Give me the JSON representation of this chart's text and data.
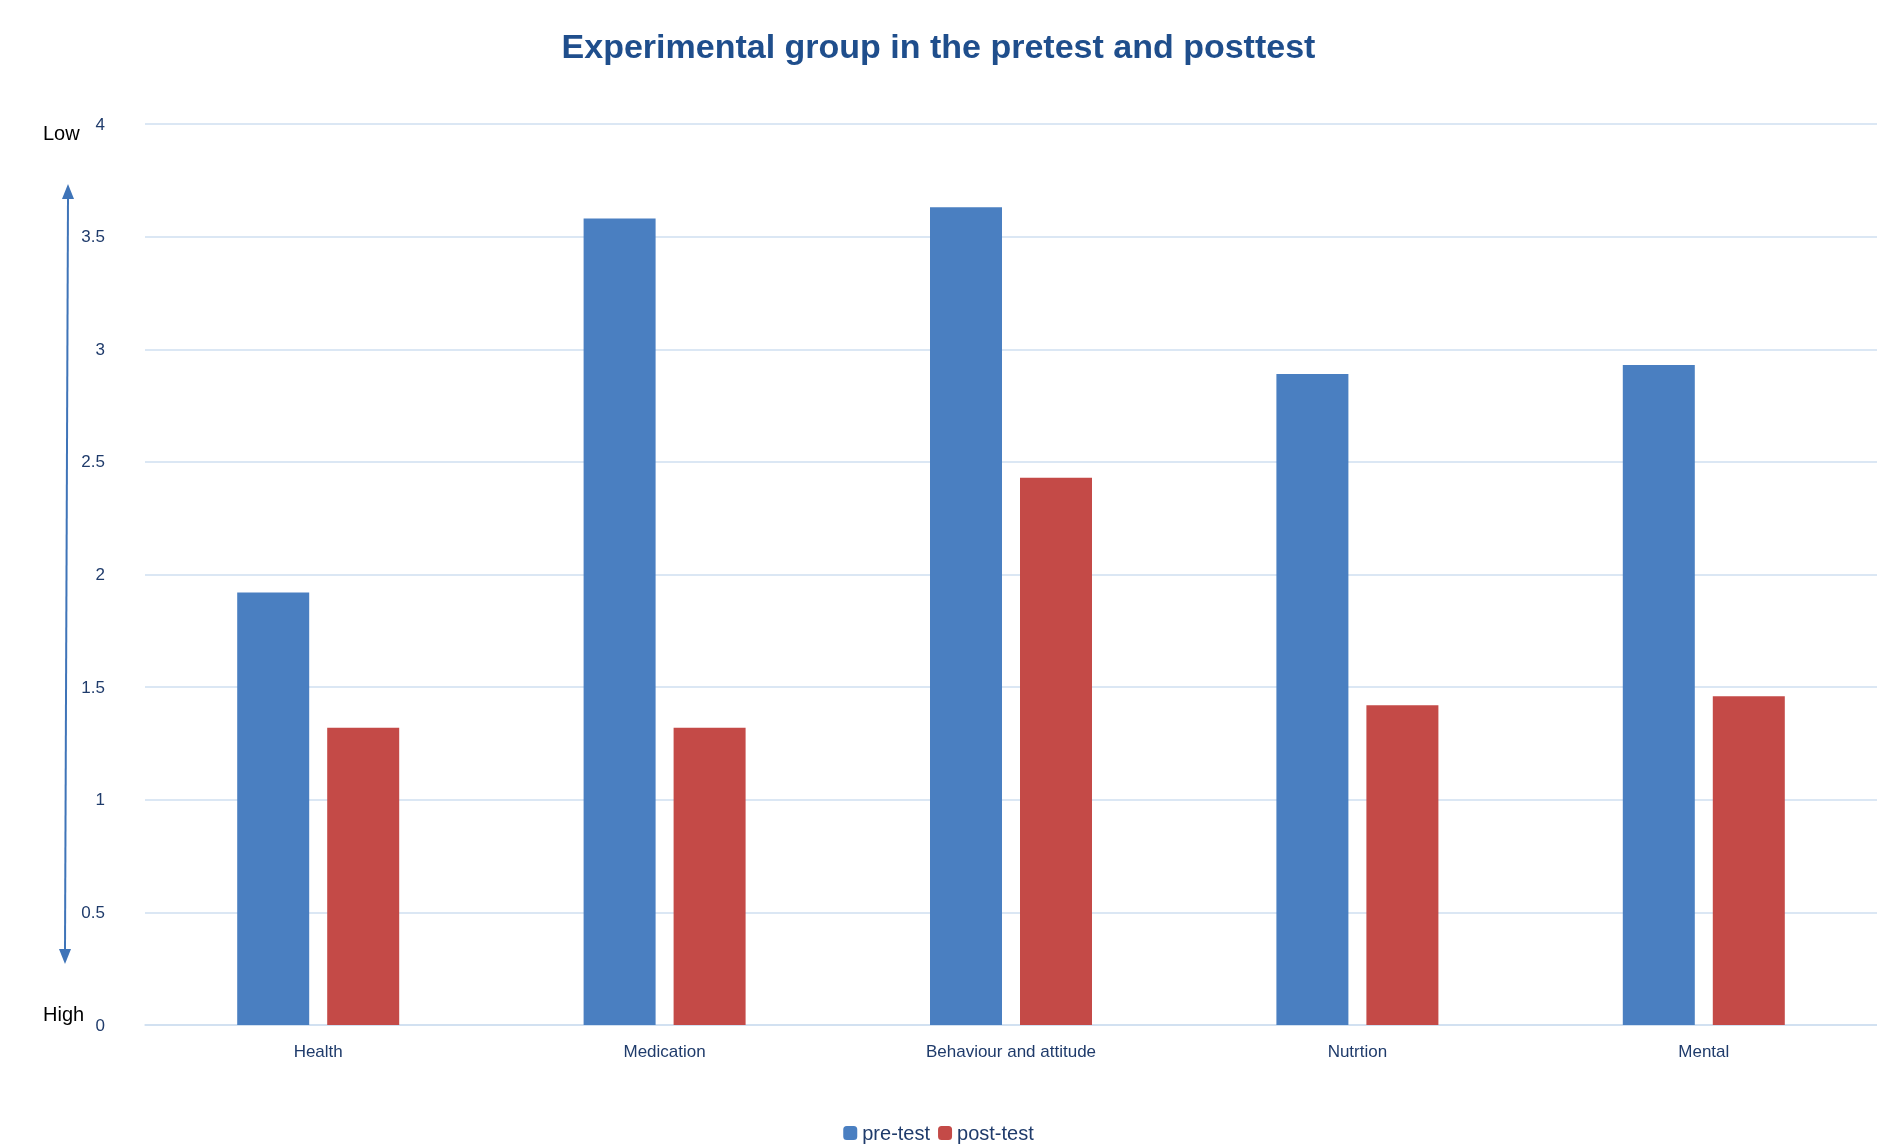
{
  "chart_data": {
    "type": "bar",
    "title": "Experimental group in the pretest and posttest",
    "categories": [
      "Health",
      "Medication",
      "Behaviour and attitude",
      "Nutrtion",
      "Mental"
    ],
    "series": [
      {
        "name": "pre-test",
        "color": "#4a7fc1",
        "values": [
          1.92,
          3.58,
          3.63,
          2.89,
          2.93
        ]
      },
      {
        "name": "post-test",
        "color": "#c44a47",
        "values": [
          1.32,
          1.32,
          2.43,
          1.42,
          1.46
        ]
      }
    ],
    "ylim": [
      0,
      4
    ],
    "yticks": [
      0,
      0.5,
      1,
      1.5,
      2,
      2.5,
      3,
      3.5,
      4
    ],
    "grid": "y",
    "legend": "bottom",
    "annotations": [
      "Low",
      "High"
    ]
  }
}
